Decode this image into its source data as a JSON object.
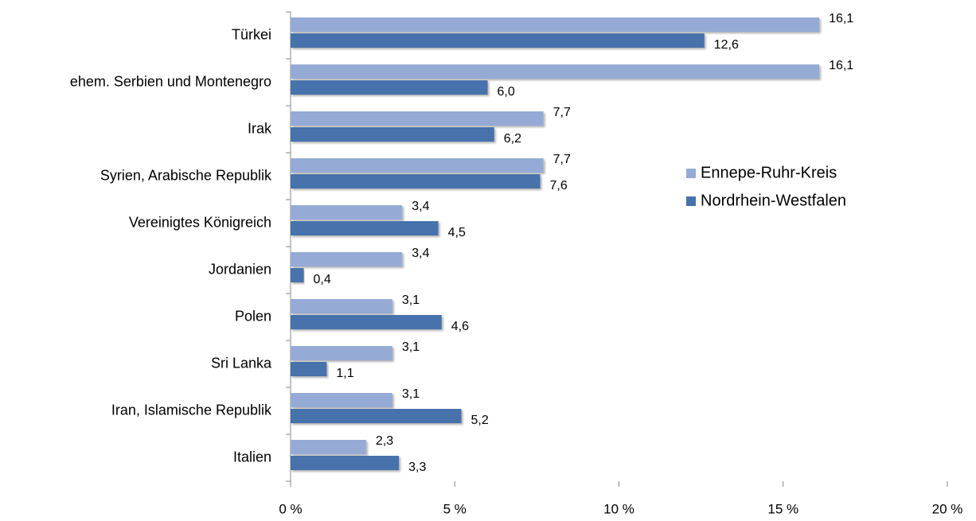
{
  "chart_data": {
    "type": "bar",
    "orientation": "horizontal",
    "categories": [
      "Türkei",
      "ehem. Serbien und Montenegro",
      "Irak",
      "Syrien, Arabische Republik",
      "Vereinigtes Königreich",
      "Jordanien",
      "Polen",
      "Sri Lanka",
      "Iran, Islamische Republik",
      "Italien"
    ],
    "series": [
      {
        "name": "Ennepe-Ruhr-Kreis",
        "color": "#95abd6",
        "values": [
          16.1,
          16.1,
          7.7,
          7.7,
          3.4,
          3.4,
          3.1,
          3.1,
          3.1,
          2.3
        ],
        "value_labels": [
          "16,1",
          "16,1",
          "7,7",
          "7,7",
          "3,4",
          "3,4",
          "3,1",
          "3,1",
          "3,1",
          "2,3"
        ]
      },
      {
        "name": "Nordrhein-Westfalen",
        "color": "#4672ab",
        "values": [
          12.6,
          6.0,
          6.2,
          7.6,
          4.5,
          0.4,
          4.6,
          1.1,
          5.2,
          3.3
        ],
        "value_labels": [
          "12,6",
          "6,0",
          "6,2",
          "7,6",
          "4,5",
          "0,4",
          "4,6",
          "1,1",
          "5,2",
          "3,3"
        ]
      }
    ],
    "xlim": [
      0,
      20
    ],
    "xticks": [
      {
        "value": 0,
        "label": "0 %"
      },
      {
        "value": 5,
        "label": "5 %"
      },
      {
        "value": 10,
        "label": "10 %"
      },
      {
        "value": 15,
        "label": "15 %"
      },
      {
        "value": 20,
        "label": "20 %"
      }
    ],
    "grid": false,
    "legend": "right"
  }
}
